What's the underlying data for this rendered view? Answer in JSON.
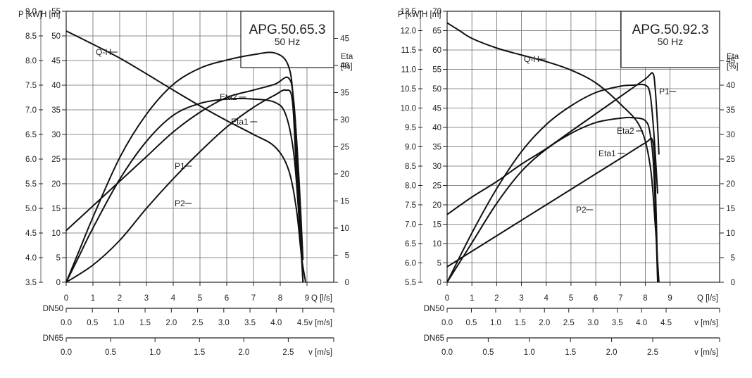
{
  "chart_data": [
    {
      "type": "line",
      "title": "APG.50.65.3",
      "subtitle": "50 Hz",
      "x_label": "Q [l/s]",
      "left_outer_label": "P [kW]",
      "left_inner_label": "H [m]",
      "right_label_line1": "Eta",
      "right_label_line2": "[%]",
      "xlim": [
        0,
        10
      ],
      "x_ticks": [
        0,
        1,
        2,
        3,
        4,
        5,
        6,
        7,
        8,
        9
      ],
      "h_lim": [
        0,
        55
      ],
      "h_ticks": [
        0,
        5,
        10,
        15,
        20,
        25,
        30,
        35,
        40,
        45,
        50,
        55
      ],
      "p_lim": [
        3.5,
        9.0
      ],
      "p_ticks": [
        "3.5",
        "4.0",
        "4.5",
        "5.0",
        "5.5",
        "6.0",
        "6.5",
        "7.0",
        "7.5",
        "8.0",
        "8.5",
        "9.0"
      ],
      "eta_lim": [
        0,
        50
      ],
      "eta_ticks": [
        0,
        5,
        10,
        15,
        20,
        25,
        30,
        35,
        40,
        45
      ],
      "grid": true,
      "series": [
        {
          "name": "Q-H",
          "axis": "H",
          "x": [
            0,
            1,
            2,
            3,
            4,
            5,
            6,
            7,
            7.8,
            8.3,
            8.6,
            8.8,
            8.95
          ],
          "y": [
            51,
            48.3,
            45.5,
            42.3,
            39,
            35.8,
            32.8,
            30,
            27.5,
            23,
            15,
            5,
            0
          ]
        },
        {
          "name": "Eta2",
          "axis": "Eta",
          "x": [
            0,
            0.5,
            1,
            2,
            3,
            4,
            5,
            6,
            7,
            7.8,
            8.3,
            8.5,
            8.7,
            8.85
          ],
          "y": [
            0,
            6,
            12,
            23,
            31,
            36.5,
            39.5,
            41,
            42,
            42.3,
            40,
            33,
            15,
            0
          ]
        },
        {
          "name": "Eta1",
          "axis": "Eta",
          "x": [
            0,
            0.5,
            1,
            2,
            3,
            4,
            5,
            6,
            7,
            7.8,
            8.2,
            8.5,
            8.7,
            8.85
          ],
          "y": [
            0,
            5,
            10,
            19,
            26,
            30.8,
            33,
            33.8,
            33.8,
            33.2,
            31,
            24,
            12,
            0
          ]
        },
        {
          "name": "P1",
          "axis": "P",
          "x": [
            0,
            1,
            2,
            3,
            4,
            5,
            6,
            7,
            7.8,
            8.3,
            8.5,
            8.7,
            8.85
          ],
          "y": [
            4.55,
            5.05,
            5.55,
            6.05,
            6.55,
            6.95,
            7.25,
            7.4,
            7.52,
            7.65,
            7.2,
            5.6,
            3.95
          ]
        },
        {
          "name": "P2",
          "axis": "P",
          "x": [
            0,
            1,
            2,
            3,
            4,
            5,
            6,
            7,
            7.8,
            8.2,
            8.45,
            8.6,
            8.8
          ],
          "y": [
            3.5,
            3.85,
            4.35,
            5.0,
            5.6,
            6.15,
            6.65,
            7.05,
            7.3,
            7.4,
            7.2,
            5.8,
            4.0
          ]
        }
      ],
      "scales": [
        {
          "label": "DN50",
          "unit": "v [m/s]",
          "ticks": [
            {
              "v": "0.0",
              "q": 0
            },
            {
              "v": "0.5",
              "q": 0.98
            },
            {
              "v": "1.0",
              "q": 1.96
            },
            {
              "v": "1.5",
              "q": 2.95
            },
            {
              "v": "2.0",
              "q": 3.93
            },
            {
              "v": "2.5",
              "q": 4.91
            },
            {
              "v": "3.0",
              "q": 5.89
            },
            {
              "v": "3.5",
              "q": 6.87
            },
            {
              "v": "4.0",
              "q": 7.85
            },
            {
              "v": "4.5",
              "q": 8.84
            }
          ]
        },
        {
          "label": "DN65",
          "unit": "v [m/s]",
          "ticks": [
            {
              "v": "0.0",
              "q": 0
            },
            {
              "v": "0.5",
              "q": 1.66
            },
            {
              "v": "1.0",
              "q": 3.32
            },
            {
              "v": "1.5",
              "q": 4.98
            },
            {
              "v": "2.0",
              "q": 6.64
            },
            {
              "v": "2.5",
              "q": 8.3
            }
          ]
        }
      ]
    },
    {
      "type": "line",
      "title": "APG.50.92.3",
      "subtitle": "50 Hz",
      "x_label": "Q [l/s]",
      "left_outer_label": "P [kW]",
      "left_inner_label": "H [m]",
      "right_label_line1": "Eta",
      "right_label_line2": "[%]",
      "xlim": [
        0,
        11
      ],
      "x_ticks": [
        0,
        1,
        2,
        3,
        4,
        5,
        6,
        7,
        8,
        9
      ],
      "h_lim": [
        0,
        70
      ],
      "h_ticks": [
        0,
        5,
        10,
        15,
        20,
        25,
        30,
        35,
        40,
        45,
        50,
        55,
        60,
        65,
        70
      ],
      "p_lim": [
        5.5,
        12.5
      ],
      "p_ticks": [
        "5.5",
        "6.0",
        "6.5",
        "7.0",
        "7.5",
        "8.0",
        "8.5",
        "9.0",
        "9.5",
        "10.0",
        "10.5",
        "11.0",
        "11.5",
        "12.0",
        "12.5"
      ],
      "eta_lim": [
        0,
        55
      ],
      "eta_ticks": [
        0,
        5,
        10,
        15,
        20,
        25,
        30,
        35,
        40,
        45
      ],
      "grid": true,
      "series": [
        {
          "name": "Q-H",
          "axis": "H",
          "x": [
            0,
            0.5,
            1,
            2,
            3,
            4,
            5,
            6,
            7,
            7.8,
            8.2,
            8.4,
            8.5,
            8.55
          ],
          "y": [
            67,
            65,
            63,
            60.5,
            58.7,
            57,
            54.8,
            51.5,
            46,
            40,
            30,
            15,
            5,
            0
          ]
        },
        {
          "name": "Eta2",
          "axis": "Eta",
          "x": [
            0,
            1,
            2,
            3,
            4,
            5,
            6,
            7,
            7.5,
            8,
            8.2,
            8.35,
            8.5
          ],
          "y": [
            0,
            10,
            19,
            26.5,
            32,
            35.8,
            38.5,
            39.8,
            40,
            40,
            38,
            30,
            18
          ]
        },
        {
          "name": "Eta1",
          "axis": "Eta",
          "x": [
            0,
            1,
            2,
            3,
            4,
            5,
            6,
            7,
            7.5,
            8,
            8.2,
            8.35,
            8.5
          ],
          "y": [
            0,
            8,
            16,
            22.5,
            27,
            30.2,
            32.4,
            33.3,
            33.4,
            32.8,
            30,
            22,
            0
          ]
        },
        {
          "name": "P1",
          "axis": "P",
          "x": [
            0,
            1,
            2,
            3,
            4,
            5,
            6,
            7,
            8,
            8.3,
            8.4,
            8.5,
            8.55
          ],
          "y": [
            7.25,
            7.7,
            8.1,
            8.55,
            8.95,
            9.4,
            9.85,
            10.3,
            10.75,
            10.9,
            10.5,
            9.5,
            8.8
          ]
        },
        {
          "name": "P2",
          "axis": "P",
          "x": [
            0,
            1,
            2,
            3,
            4,
            5,
            6,
            7,
            8,
            8.3,
            8.4,
            8.5
          ],
          "y": [
            5.9,
            6.3,
            6.7,
            7.1,
            7.5,
            7.9,
            8.3,
            8.7,
            9.1,
            9.15,
            8.2,
            5.6
          ]
        }
      ],
      "scales": [
        {
          "label": "DN50",
          "unit": "v [m/s]",
          "ticks": [
            {
              "v": "0.0",
              "q": 0
            },
            {
              "v": "0.5",
              "q": 0.98
            },
            {
              "v": "1.0",
              "q": 1.96
            },
            {
              "v": "1.5",
              "q": 2.95
            },
            {
              "v": "2.0",
              "q": 3.93
            },
            {
              "v": "2.5",
              "q": 4.91
            },
            {
              "v": "3.0",
              "q": 5.89
            },
            {
              "v": "3.5",
              "q": 6.87
            },
            {
              "v": "4.0",
              "q": 7.85
            },
            {
              "v": "4.5",
              "q": 8.84
            }
          ]
        },
        {
          "label": "DN65",
          "unit": "v [m/s]",
          "ticks": [
            {
              "v": "0.0",
              "q": 0
            },
            {
              "v": "0.5",
              "q": 1.66
            },
            {
              "v": "1.0",
              "q": 3.32
            },
            {
              "v": "1.5",
              "q": 4.98
            },
            {
              "v": "2.0",
              "q": 6.64
            },
            {
              "v": "2.5",
              "q": 8.3
            }
          ]
        }
      ]
    }
  ]
}
